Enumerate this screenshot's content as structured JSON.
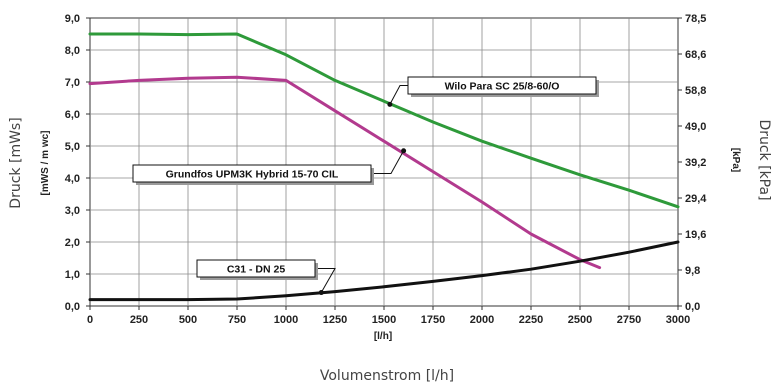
{
  "chart_data": {
    "type": "line",
    "xlabel_inner": "[l/h]",
    "xlabel_outer": "Volumenstrom [l/h]",
    "ylabel_left_inner": "[mWS / m wc]",
    "ylabel_left_outer": "Druck [mWs]",
    "ylabel_right_inner": "[kPa]",
    "ylabel_right_outer": "Druck [kPa]",
    "xlim": [
      0,
      3000
    ],
    "ylim": [
      0,
      9
    ],
    "ylim_right": [
      0,
      78.5
    ],
    "x_ticks": [
      "0",
      "250",
      "500",
      "750",
      "1000",
      "1250",
      "1500",
      "1750",
      "2000",
      "2250",
      "2500",
      "2750",
      "3000"
    ],
    "y_ticks_left": [
      "0,0",
      "1,0",
      "2,0",
      "3,0",
      "4,0",
      "5,0",
      "6,0",
      "7,0",
      "8,0",
      "9,0"
    ],
    "y_ticks_right": [
      "0,0",
      "9,8",
      "19,6",
      "29,4",
      "39,2",
      "49,0",
      "58,8",
      "68,6",
      "78,5"
    ],
    "grid": true,
    "series": [
      {
        "name": "Wilo Para SC 25/8-60/O",
        "color": "#2e9a3a",
        "x": [
          0,
          250,
          500,
          750,
          1000,
          1250,
          1500,
          1750,
          2000,
          2250,
          2500,
          2750,
          3000
        ],
        "y": [
          8.5,
          8.5,
          8.48,
          8.5,
          7.85,
          7.05,
          6.4,
          5.75,
          5.15,
          4.62,
          4.1,
          3.62,
          3.1
        ]
      },
      {
        "name": "Grundfos UPM3K Hybrid 15-70 CIL",
        "color": "#b23a8e",
        "x": [
          0,
          250,
          500,
          750,
          1000,
          1250,
          1500,
          1750,
          2000,
          2250,
          2500,
          2600
        ],
        "y": [
          6.95,
          7.05,
          7.12,
          7.15,
          7.05,
          6.1,
          5.15,
          4.2,
          3.25,
          2.25,
          1.45,
          1.2
        ]
      },
      {
        "name": "C31 - DN 25",
        "color": "#111111",
        "x": [
          0,
          250,
          500,
          750,
          1000,
          1250,
          1500,
          1750,
          2000,
          2250,
          2500,
          2750,
          3000
        ],
        "y": [
          0.2,
          0.2,
          0.2,
          0.22,
          0.32,
          0.45,
          0.6,
          0.77,
          0.95,
          1.15,
          1.4,
          1.68,
          2.0
        ]
      }
    ],
    "annotations": [
      {
        "text": "Wilo Para SC 25/8-60/O",
        "series": 0,
        "point_x": 1530,
        "point_y": 6.3
      },
      {
        "text": "Grundfos UPM3K Hybrid 15-70 CIL",
        "series": 1,
        "point_x": 1600,
        "point_y": 4.85
      },
      {
        "text": "C31 - DN 25",
        "series": 2,
        "point_x": 1180,
        "point_y": 0.42
      }
    ]
  }
}
